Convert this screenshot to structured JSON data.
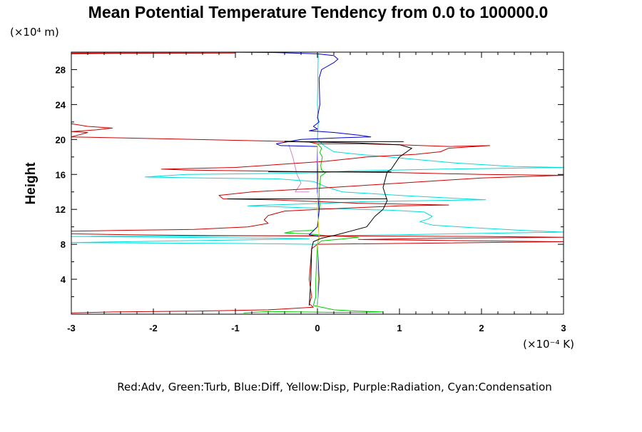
{
  "chart_data": {
    "type": "line",
    "title": "Mean Potential Temperature Tendency from 0.0 to 100000.0",
    "ylabel": "Height",
    "y_unit_label": "(×10⁴ m)",
    "x_unit_label": "(×10⁻⁴ K)",
    "legend_text": "Red:Adv, Green:Turb, Blue:Diff, Yellow:Disp, Purple:Radiation, Cyan:Condensation",
    "x_range": [
      -3,
      3
    ],
    "y_range": [
      0,
      30
    ],
    "x_ticks": [
      -3,
      -2,
      -1,
      0,
      1,
      2,
      3
    ],
    "x_tick_labels": [
      "-3",
      "-2",
      "-1",
      "0",
      "1",
      "2",
      "3"
    ],
    "y_ticks": [
      4,
      8,
      12,
      16,
      20,
      24,
      28
    ],
    "y_tick_labels": [
      "4",
      "8",
      "12",
      "16",
      "20",
      "24",
      "28"
    ],
    "colors": {
      "adv": "#cc0000",
      "turb": "#00cc00",
      "diff": "#0000cc",
      "disp": "#dddd00",
      "radiation": "#cc88cc",
      "condensation": "#00dddd",
      "total": "#000000"
    },
    "series": [
      {
        "key": "radiation",
        "points": [
          [
            -0.35,
            19.4
          ],
          [
            -0.3,
            18
          ],
          [
            -0.25,
            16
          ],
          [
            -0.2,
            15
          ],
          [
            -0.27,
            14
          ],
          [
            -0.1,
            14
          ]
        ]
      },
      {
        "key": "condensation",
        "points": [
          [
            0.01,
            29.8
          ],
          [
            0.0,
            24
          ],
          [
            0.01,
            22
          ],
          [
            0.0,
            20
          ],
          [
            0.08,
            19.3
          ],
          [
            0.2,
            18.6
          ],
          [
            0.5,
            18.3
          ],
          [
            1.1,
            17.8
          ],
          [
            1.7,
            17.3
          ],
          [
            2.4,
            16.9
          ],
          [
            3,
            16.8
          ],
          [
            1.5,
            16.6
          ],
          [
            0.4,
            16.4
          ],
          [
            0.05,
            16.2
          ],
          [
            -0.6,
            16.1
          ],
          [
            -1.6,
            16
          ],
          [
            -2.1,
            15.7
          ],
          [
            -1.4,
            15.6
          ],
          [
            -0.5,
            15.5
          ],
          [
            -0.05,
            15.2
          ],
          [
            0.1,
            14.6
          ],
          [
            0.3,
            14
          ],
          [
            1.0,
            13.6
          ],
          [
            1.6,
            13.3
          ],
          [
            2.05,
            13.1
          ],
          [
            1.3,
            13.0
          ],
          [
            0.6,
            12.9
          ],
          [
            0.1,
            12.7
          ],
          [
            -0.6,
            12.5
          ],
          [
            -0.85,
            12.4
          ],
          [
            -0.5,
            12.3
          ],
          [
            0.1,
            12.1
          ],
          [
            0.9,
            11.9
          ],
          [
            1.3,
            11.7
          ],
          [
            1.4,
            11.2
          ],
          [
            1.35,
            10.9
          ],
          [
            1.25,
            10.6
          ],
          [
            1.4,
            10.2
          ],
          [
            1.9,
            9.9
          ],
          [
            2.5,
            9.6
          ],
          [
            3,
            9.4
          ],
          [
            1.0,
            9.1
          ],
          [
            0.2,
            9.0
          ],
          [
            -3,
            8.9
          ],
          [
            -1,
            8.75
          ],
          [
            -0.1,
            8.65
          ],
          [
            -0.6,
            8.55
          ],
          [
            -3,
            8.2
          ],
          [
            -1,
            8.1
          ],
          [
            0.0,
            8.0
          ],
          [
            0.01,
            4
          ],
          [
            0.0,
            1
          ],
          [
            0.0,
            0.1
          ]
        ]
      },
      {
        "key": "turb",
        "points": [
          [
            0.0,
            19.5
          ],
          [
            0.05,
            19.0
          ],
          [
            0.03,
            18.5
          ],
          [
            0.06,
            18
          ],
          [
            0.04,
            17
          ],
          [
            0.05,
            16.5
          ],
          [
            0.1,
            16.2
          ],
          [
            0.04,
            15.8
          ],
          [
            0.02,
            14
          ],
          [
            0.03,
            12.5
          ],
          [
            0.0,
            10
          ],
          [
            -0.05,
            9.6
          ],
          [
            -0.3,
            9.5
          ],
          [
            -0.4,
            9.3
          ],
          [
            -0.1,
            9.2
          ],
          [
            0.1,
            9.0
          ],
          [
            0.5,
            8.8
          ],
          [
            0.3,
            8.6
          ],
          [
            0.05,
            8.4
          ],
          [
            0.0,
            8.0
          ],
          [
            -0.02,
            4
          ],
          [
            -0.02,
            2
          ],
          [
            -0.05,
            1.0
          ],
          [
            0.05,
            0.8
          ],
          [
            0.2,
            0.5
          ],
          [
            0.5,
            0.35
          ],
          [
            0.8,
            0.25
          ],
          [
            0.3,
            0.2
          ],
          [
            -0.2,
            0.25
          ],
          [
            -0.6,
            0.3
          ],
          [
            -0.9,
            0.15
          ]
        ]
      },
      {
        "key": "adv",
        "points": [
          [
            -3,
            29.9
          ],
          [
            -1,
            29.9
          ],
          [
            -2.5,
            29.85
          ],
          [
            -3,
            29.8
          ],
          [
            -3,
            21.8
          ],
          [
            -2.8,
            21.5
          ],
          [
            -2.5,
            21.3
          ],
          [
            -2.7,
            21.1
          ],
          [
            -3,
            20.9
          ],
          [
            -2.8,
            20.8
          ],
          [
            -3,
            20.3
          ],
          [
            -1.5,
            20.0
          ],
          [
            -0.5,
            19.8
          ],
          [
            -0.1,
            19.7
          ],
          [
            0.0,
            19.5
          ],
          [
            0.5,
            19.5
          ],
          [
            1.0,
            19.4
          ],
          [
            1.6,
            19.2
          ],
          [
            2.1,
            19.3
          ],
          [
            1.6,
            19.0
          ],
          [
            1.5,
            18.6
          ],
          [
            1.2,
            18.3
          ],
          [
            0.6,
            18.0
          ],
          [
            0.1,
            17.5
          ],
          [
            -1.0,
            16.8
          ],
          [
            -1.9,
            16.6
          ],
          [
            -1.6,
            16.5
          ],
          [
            0.0,
            16.3
          ],
          [
            1.0,
            16.2
          ],
          [
            2.0,
            16.0
          ],
          [
            3,
            15.9
          ],
          [
            2.0,
            15.6
          ],
          [
            1.0,
            15.0
          ],
          [
            0.0,
            14.4
          ],
          [
            -0.8,
            14.0
          ],
          [
            -1.2,
            13.6
          ],
          [
            -1.15,
            13.2
          ],
          [
            -0.6,
            13.1
          ],
          [
            0.0,
            12.9
          ],
          [
            0.5,
            12.7
          ],
          [
            1.6,
            12.5
          ],
          [
            1.0,
            12.4
          ],
          [
            0.5,
            12.2
          ],
          [
            0.0,
            12.0
          ],
          [
            -0.4,
            11.8
          ],
          [
            -0.6,
            11.3
          ],
          [
            -0.65,
            10.8
          ],
          [
            -0.6,
            10.4
          ],
          [
            -0.85,
            10.0
          ],
          [
            -1.5,
            9.7
          ],
          [
            -2.4,
            9.6
          ],
          [
            -3,
            9.5
          ],
          [
            -3,
            9.2
          ],
          [
            -2.3,
            9.1
          ],
          [
            -1.3,
            9.0
          ],
          [
            0.0,
            8.95
          ],
          [
            2.0,
            8.9
          ],
          [
            3,
            8.8
          ],
          [
            1.5,
            8.7
          ],
          [
            0.5,
            8.55
          ],
          [
            3,
            8.3
          ],
          [
            0.0,
            8.0
          ],
          [
            -0.07,
            7.5
          ],
          [
            -0.1,
            4.0
          ],
          [
            -0.07,
            2.0
          ],
          [
            -0.1,
            1.2
          ],
          [
            -0.05,
            0.8
          ],
          [
            -0.6,
            0.5
          ],
          [
            -1.5,
            0.35
          ],
          [
            -2.5,
            0.25
          ],
          [
            -3,
            0.15
          ]
        ]
      },
      {
        "key": "diff",
        "points": [
          [
            -1.2,
            30
          ],
          [
            -0.5,
            29.95
          ],
          [
            0.0,
            29.8
          ],
          [
            0.2,
            29.6
          ],
          [
            0.25,
            29.2
          ],
          [
            0.2,
            28.8
          ],
          [
            0.05,
            28
          ],
          [
            0.02,
            27
          ],
          [
            0.03,
            24
          ],
          [
            0.0,
            22.5
          ],
          [
            0.02,
            22
          ],
          [
            -0.05,
            21.5
          ],
          [
            0.0,
            21.2
          ],
          [
            -0.1,
            21.0
          ],
          [
            0.2,
            20.8
          ],
          [
            0.5,
            20.5
          ],
          [
            0.65,
            20.3
          ],
          [
            0.3,
            20.2
          ],
          [
            -0.2,
            20.0
          ],
          [
            -0.5,
            19.5
          ],
          [
            -0.45,
            19.3
          ],
          [
            0.0,
            19.2
          ],
          [
            0.0,
            14
          ],
          [
            0.02,
            12
          ],
          [
            0.0,
            10
          ],
          [
            -0.1,
            9.1
          ],
          [
            0.02,
            8.9
          ],
          [
            0.0,
            8.0
          ],
          [
            0.02,
            4
          ],
          [
            0.0,
            1
          ]
        ]
      },
      {
        "key": "disp",
        "points": [
          [
            0.0,
            19.5
          ],
          [
            0.01,
            16
          ],
          [
            0.0,
            12
          ],
          [
            0.02,
            9
          ],
          [
            0.0,
            8
          ],
          [
            0.01,
            4
          ],
          [
            0.0,
            0.2
          ]
        ]
      },
      {
        "key": "total",
        "points": [
          [
            -0.4,
            19.8
          ],
          [
            0.0,
            19.7
          ],
          [
            0.5,
            19.6
          ],
          [
            1.0,
            19.4
          ],
          [
            1.15,
            19.0
          ],
          [
            1.0,
            18.0
          ],
          [
            0.9,
            16.6
          ],
          [
            0.85,
            16.3
          ],
          [
            0.8,
            14.5
          ],
          [
            0.85,
            13
          ],
          [
            0.8,
            12.0
          ],
          [
            0.7,
            11.2
          ],
          [
            0.6,
            10.0
          ],
          [
            0.4,
            9.5
          ],
          [
            0.2,
            9.0
          ],
          [
            0.05,
            8.7
          ],
          [
            -0.05,
            8.3
          ],
          [
            -0.07,
            7.5
          ],
          [
            -0.08,
            4
          ],
          [
            -0.1,
            1
          ]
        ]
      },
      {
        "key": "total",
        "points": [
          [
            -0.4,
            19.75
          ],
          [
            1.05,
            19.75
          ]
        ]
      },
      {
        "key": "total",
        "points": [
          [
            -0.6,
            16.3
          ],
          [
            0.9,
            16.3
          ]
        ]
      },
      {
        "key": "total",
        "points": [
          [
            -1.1,
            13.2
          ],
          [
            0.85,
            13.2
          ]
        ]
      }
    ]
  }
}
